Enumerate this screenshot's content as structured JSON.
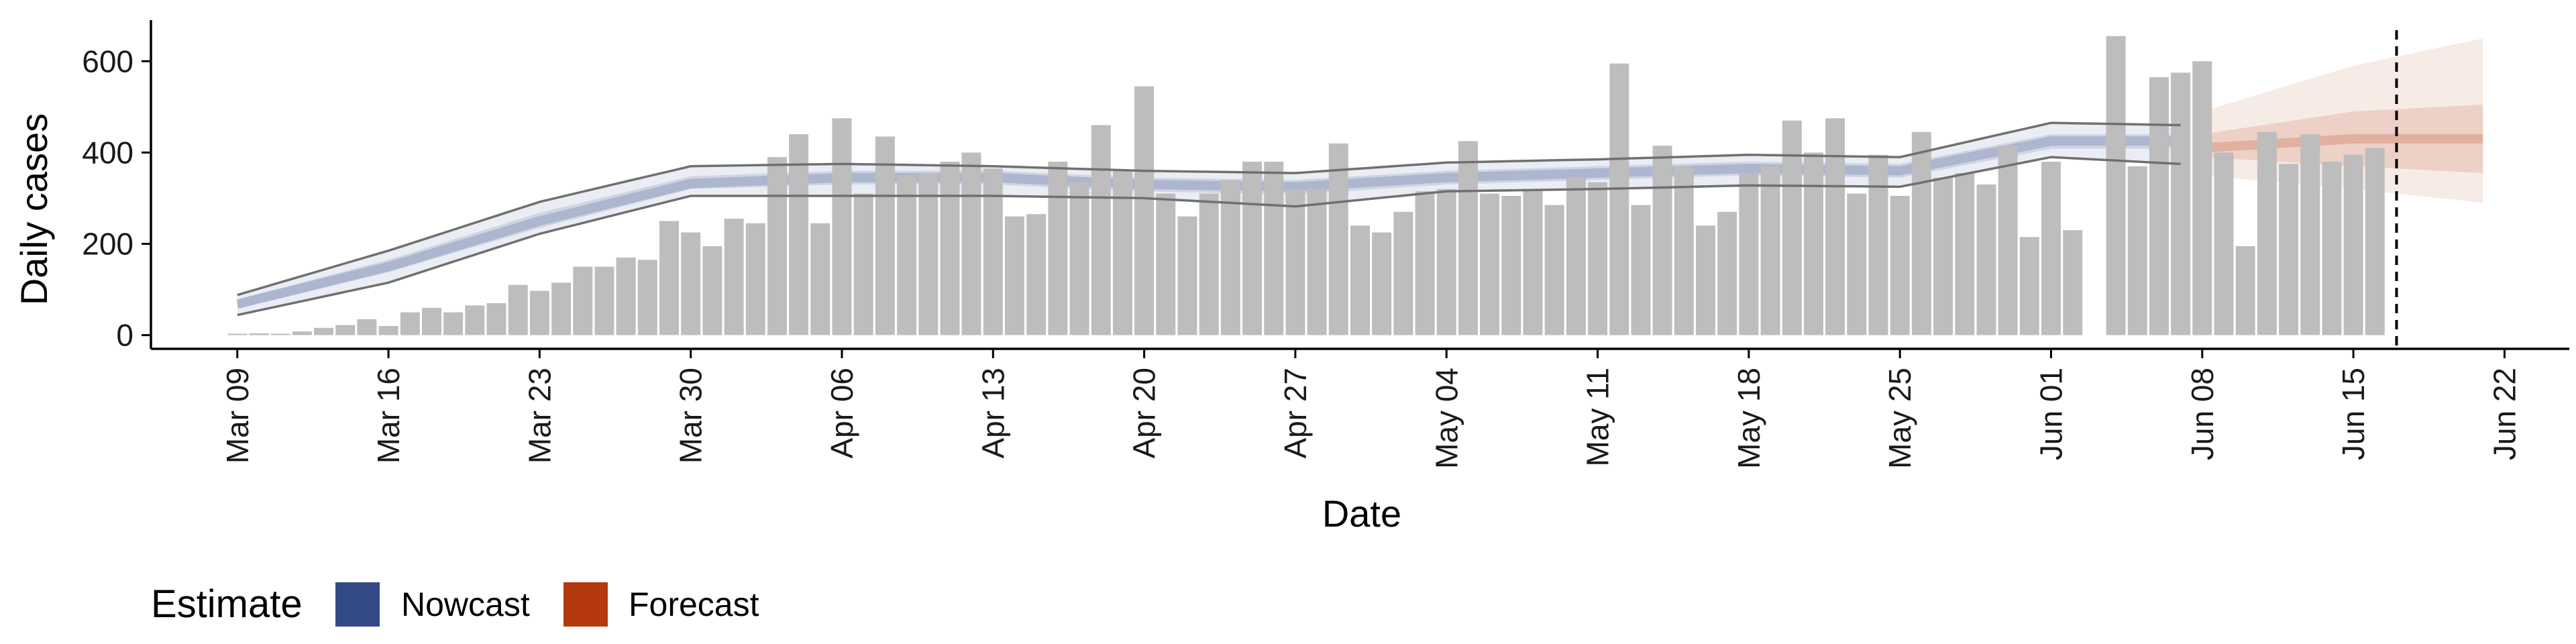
{
  "chart_data": {
    "type": "bar",
    "xlabel": "Date",
    "ylabel": "Daily cases",
    "ylim": [
      -30,
      690
    ],
    "xlim": [
      "2020-03-05",
      "2020-06-25"
    ],
    "grid": false,
    "x_ticks": [
      "2020-03-09",
      "2020-03-16",
      "2020-03-23",
      "2020-03-30",
      "2020-04-06",
      "2020-04-13",
      "2020-04-20",
      "2020-04-27",
      "2020-05-04",
      "2020-05-11",
      "2020-05-18",
      "2020-05-25",
      "2020-06-01",
      "2020-06-08",
      "2020-06-15",
      "2020-06-22"
    ],
    "x_tick_labels": [
      "Mar 09",
      "Mar 16",
      "Mar 23",
      "Mar 30",
      "Apr 06",
      "Apr 13",
      "Apr 20",
      "Apr 27",
      "May 04",
      "May 11",
      "May 18",
      "May 25",
      "Jun 01",
      "Jun 08",
      "Jun 15",
      "Jun 22"
    ],
    "y_ticks": [
      0,
      200,
      400,
      600
    ],
    "y_tick_labels": [
      "0",
      "200",
      "400",
      "600"
    ],
    "bars_start_date": "2020-03-09",
    "bars": [
      3,
      4,
      3,
      8,
      16,
      22,
      35,
      20,
      50,
      60,
      50,
      65,
      70,
      110,
      97,
      115,
      150,
      150,
      170,
      165,
      250,
      225,
      195,
      255,
      245,
      390,
      440,
      245,
      475,
      310,
      435,
      350,
      355,
      380,
      400,
      365,
      260,
      265,
      380,
      335,
      460,
      360,
      545,
      310,
      260,
      310,
      340,
      380,
      380,
      320,
      320,
      420,
      240,
      225,
      270,
      315,
      320,
      425,
      310,
      305,
      320,
      285,
      345,
      335,
      595,
      285,
      415,
      370,
      240,
      270,
      355,
      370,
      470,
      400,
      475,
      310,
      395,
      305,
      445,
      345,
      355,
      330,
      415,
      215,
      380,
      230,
      null,
      655,
      370,
      565,
      575,
      600,
      400,
      195,
      445,
      375,
      440,
      380,
      395,
      410
    ],
    "nowcast": {
      "start_date": "2020-03-09",
      "end_date": "2020-06-07",
      "knots": [
        {
          "date": "2020-03-09",
          "median": 68,
          "inner": [
            58,
            78
          ],
          "outer": [
            44,
            88
          ]
        },
        {
          "date": "2020-03-16",
          "median": 150,
          "inner": [
            138,
            165
          ],
          "outer": [
            115,
            185
          ]
        },
        {
          "date": "2020-03-23",
          "median": 250,
          "inner": [
            235,
            268
          ],
          "outer": [
            222,
            292
          ]
        },
        {
          "date": "2020-03-30",
          "median": 332,
          "inner": [
            320,
            348
          ],
          "outer": [
            305,
            370
          ]
        },
        {
          "date": "2020-04-06",
          "median": 345,
          "inner": [
            330,
            360
          ],
          "outer": [
            305,
            375
          ]
        },
        {
          "date": "2020-04-13",
          "median": 345,
          "inner": [
            330,
            360
          ],
          "outer": [
            305,
            370
          ]
        },
        {
          "date": "2020-04-20",
          "median": 330,
          "inner": [
            315,
            345
          ],
          "outer": [
            300,
            360
          ]
        },
        {
          "date": "2020-04-27",
          "median": 325,
          "inner": [
            308,
            340
          ],
          "outer": [
            282,
            355
          ]
        },
        {
          "date": "2020-05-04",
          "median": 345,
          "inner": [
            330,
            360
          ],
          "outer": [
            315,
            378
          ]
        },
        {
          "date": "2020-05-11",
          "median": 355,
          "inner": [
            340,
            370
          ],
          "outer": [
            320,
            385
          ]
        },
        {
          "date": "2020-05-18",
          "median": 365,
          "inner": [
            350,
            380
          ],
          "outer": [
            328,
            395
          ]
        },
        {
          "date": "2020-05-25",
          "median": 360,
          "inner": [
            345,
            375
          ],
          "outer": [
            325,
            390
          ]
        },
        {
          "date": "2020-06-01",
          "median": 425,
          "inner": [
            408,
            440
          ],
          "outer": [
            390,
            465
          ]
        },
        {
          "date": "2020-06-07",
          "median": 425,
          "inner": [
            408,
            440
          ],
          "outer": [
            375,
            460
          ]
        }
      ]
    },
    "forecast": {
      "start_date": "2020-06-08",
      "end_date": "2020-06-21",
      "knots": [
        {
          "date": "2020-06-08",
          "median": 410,
          "inner": [
            390,
            440
          ],
          "outer": [
            350,
            490
          ]
        },
        {
          "date": "2020-06-15",
          "median": 430,
          "inner": [
            370,
            490
          ],
          "outer": [
            320,
            590
          ]
        },
        {
          "date": "2020-06-21",
          "median": 430,
          "inner": [
            355,
            505
          ],
          "outer": [
            290,
            650
          ]
        }
      ]
    },
    "vline_date": "2020-06-17",
    "legend": {
      "title": "Estimate",
      "position": "bottom-left",
      "items": [
        {
          "label": "Nowcast",
          "color": "#334A87"
        },
        {
          "label": "Forecast",
          "color": "#B43A0E"
        }
      ]
    }
  },
  "colors": {
    "bar": "#BDBDBD",
    "nowcast": "#334A87",
    "forecast": "#B43A0E",
    "outer_line": "#707070",
    "axis": "#000000"
  }
}
